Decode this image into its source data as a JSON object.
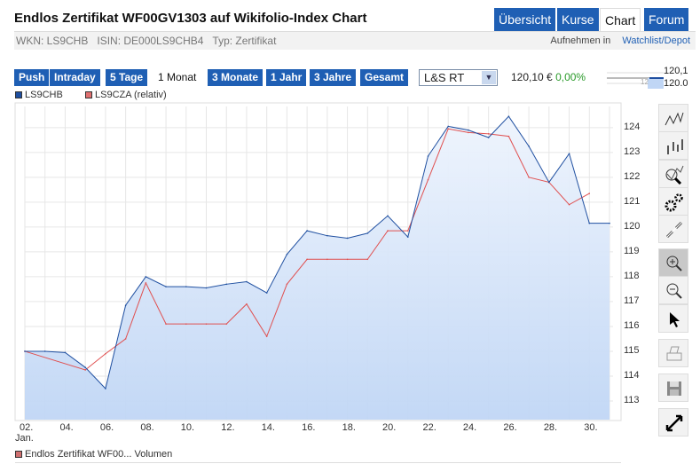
{
  "header": {
    "title": "Endlos Zertifikat WF00GV1303 auf Wikifolio-Index Chart",
    "tabs": [
      {
        "label": "Übersicht",
        "active": false
      },
      {
        "label": "Kurse",
        "active": false
      },
      {
        "label": "Chart",
        "active": true
      },
      {
        "label": "Forum",
        "active": false
      }
    ]
  },
  "info": {
    "wkn": "WKN: LS9CHB",
    "isin": "ISIN: DE000LS9CHB4",
    "typ": "Typ: Zertifikat",
    "watch_prefix": "Aufnehmen in",
    "watch_link": "Watchlist/Depot"
  },
  "ranges": [
    {
      "label": "Push"
    },
    {
      "label": "Intraday"
    },
    {
      "label": "5 Tage"
    },
    {
      "label": "1 Monat",
      "active": true
    },
    {
      "label": "3 Monate"
    },
    {
      "label": "1 Jahr"
    },
    {
      "label": "3 Jahre"
    },
    {
      "label": "Gesamt"
    }
  ],
  "exchange": "L&S RT",
  "price": {
    "value": "120,10 €",
    "change": "0,00%"
  },
  "mini": {
    "top": "120,1",
    "bottom": "120.0",
    "mid": "12"
  },
  "legend": {
    "s1": "LS9CHB",
    "s2": "LS9CZA (relativ)",
    "volume": "Endlos Zertifikat WF00... Volumen"
  },
  "colors": {
    "blue": "#1f4fa0",
    "red": "#e05050",
    "fill": "#c0d6f5",
    "accent": "#1f5fb4"
  },
  "chart_data": {
    "type": "area",
    "title": "",
    "xlabel": "Jan.",
    "ylabel": "",
    "ylim": [
      112.25,
      124.85
    ],
    "x_ticks": [
      "02.",
      "04.",
      "06.",
      "08.",
      "10.",
      "12.",
      "14.",
      "16.",
      "18.",
      "20.",
      "22.",
      "24.",
      "26.",
      "28.",
      "30."
    ],
    "x_tick_days": [
      2,
      4,
      6,
      8,
      10,
      12,
      14,
      16,
      18,
      20,
      22,
      24,
      26,
      28,
      30
    ],
    "y_ticks": [
      113,
      114,
      115,
      116,
      117,
      118,
      119,
      120,
      121,
      122,
      123,
      124
    ],
    "xrange": [
      2,
      31
    ],
    "series": [
      {
        "name": "LS9CHB",
        "color": "#1f4fa0",
        "x": [
          2,
          3,
          4,
          5,
          6,
          7,
          8,
          9,
          10,
          11,
          12,
          13,
          14,
          15,
          16,
          17,
          18,
          19,
          20,
          21,
          22,
          23,
          24,
          25,
          26,
          27,
          28,
          29,
          30,
          31
        ],
        "values": [
          115.0,
          115.0,
          114.95,
          114.35,
          113.5,
          116.85,
          118.0,
          117.6,
          117.6,
          117.55,
          117.7,
          117.8,
          117.35,
          118.9,
          119.85,
          119.65,
          119.55,
          119.75,
          120.45,
          119.6,
          122.85,
          124.05,
          123.9,
          123.6,
          124.45,
          123.25,
          121.8,
          122.95,
          120.15,
          120.15
        ]
      },
      {
        "name": "LS9CZA (relativ)",
        "color": "#e05050",
        "x": [
          2,
          5,
          6,
          7,
          8,
          9,
          10,
          11,
          12,
          13,
          14,
          15,
          16,
          17,
          18,
          19,
          20,
          21,
          22,
          23,
          24,
          25,
          26,
          27,
          28,
          29,
          30
        ],
        "values": [
          115.0,
          114.25,
          114.9,
          115.5,
          117.75,
          116.1,
          116.1,
          116.1,
          116.1,
          116.9,
          115.6,
          117.7,
          118.7,
          118.7,
          118.7,
          118.7,
          119.85,
          119.85,
          121.9,
          123.95,
          123.8,
          123.75,
          123.65,
          122.0,
          121.8,
          120.9,
          121.35
        ]
      }
    ]
  }
}
